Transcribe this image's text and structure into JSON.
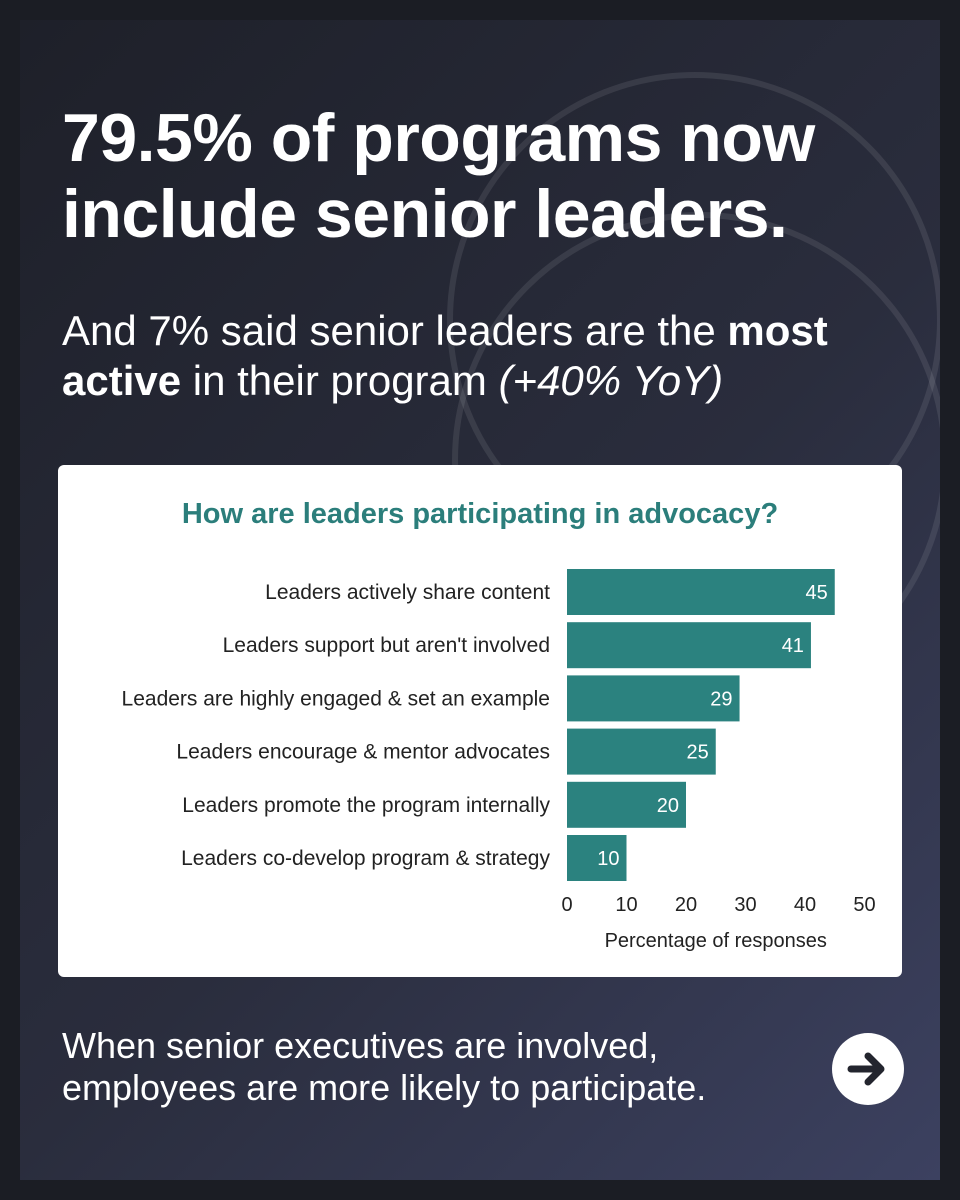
{
  "headline": "79.5% of programs now include senior leaders.",
  "subhead": {
    "part1": "And 7% said senior leaders are the ",
    "bold": "most active",
    "part2": " in their program ",
    "italic": "(+40% YoY)"
  },
  "footer": {
    "line1": "When senior executives are involved,",
    "line2": "employees are more likely to participate."
  },
  "next_icon": "arrow-right-icon",
  "colors": {
    "bar": "#2b827f",
    "title": "#2b7e7b",
    "background": "#2a2d3d"
  },
  "chart_data": {
    "type": "bar",
    "orientation": "horizontal",
    "title": "How are leaders participating in advocacy?",
    "categories": [
      "Leaders actively share content",
      "Leaders support but aren't involved",
      "Leaders are highly engaged & set an example",
      "Leaders encourage & mentor advocates",
      "Leaders promote the program internally",
      "Leaders co-develop program & strategy"
    ],
    "values": [
      45,
      41,
      29,
      25,
      20,
      10
    ],
    "xlabel": "Percentage of responses",
    "ylabel": "",
    "xlim": [
      0,
      50
    ],
    "xticks": [
      0,
      10,
      20,
      30,
      40,
      50
    ],
    "grid": false,
    "data_labels": true
  }
}
